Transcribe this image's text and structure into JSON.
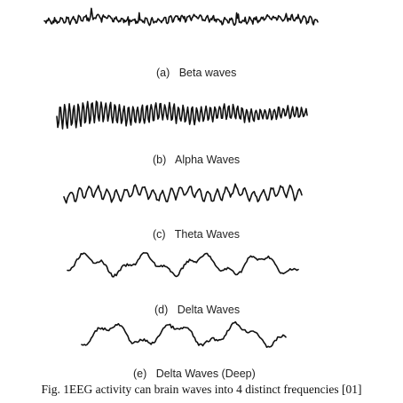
{
  "panels": [
    {
      "label": "(a)   Beta waves"
    },
    {
      "label": "(b)   Alpha Waves"
    },
    {
      "label": "(c)   Theta Waves"
    },
    {
      "label": "(d)   Delta Waves"
    },
    {
      "label": "(e)   Delta Waves (Deep)"
    }
  ],
  "caption": "Fig. 1EEG activity can brain waves into 4 distinct frequencies [01]",
  "colors": {
    "trace": "#111111",
    "background": "#ffffff"
  }
}
